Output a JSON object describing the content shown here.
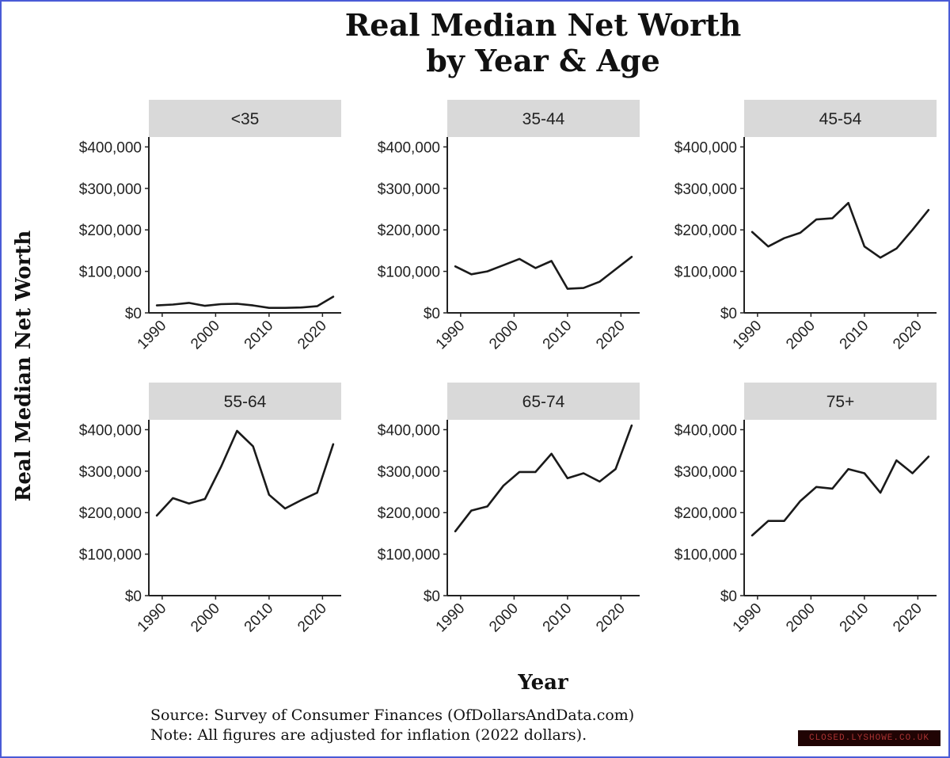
{
  "title": {
    "line1": "Real Median Net Worth",
    "line2": "by Year & Age"
  },
  "ylabel": "Real Median Net Worth",
  "xlabel": "Year",
  "source": {
    "line1": "Source:  Survey of Consumer Finances (OfDollarsAndData.com)",
    "line2": "Note: All figures are adjusted for inflation (2022 dollars)."
  },
  "watermark": "CLOSED.LYSHOWE.CO.UK",
  "colors": {
    "line": "#1a1a1a",
    "strip": "#d9d9d9",
    "border": "#4a5bd6"
  },
  "chart_data": [
    {
      "type": "line",
      "panel": "<35",
      "x": [
        1989,
        1992,
        1995,
        1998,
        2001,
        2004,
        2007,
        2010,
        2013,
        2016,
        2019,
        2022
      ],
      "values": [
        18000,
        20000,
        24000,
        17000,
        21000,
        22000,
        18000,
        12000,
        12000,
        13000,
        16000,
        39000
      ],
      "xticks": [
        "1990",
        "2000",
        "2010",
        "2020"
      ],
      "yticks": [
        "$400,000",
        "$300,000",
        "$200,000",
        "$100,000",
        "$0"
      ],
      "ylim": [
        0,
        420000
      ]
    },
    {
      "type": "line",
      "panel": "35-44",
      "x": [
        1989,
        1992,
        1995,
        1998,
        2001,
        2004,
        2007,
        2010,
        2013,
        2016,
        2019,
        2022
      ],
      "values": [
        112000,
        93000,
        100000,
        115000,
        130000,
        108000,
        125000,
        58000,
        60000,
        75000,
        105000,
        135000
      ],
      "xticks": [
        "1990",
        "2000",
        "2010",
        "2020"
      ],
      "yticks": [
        "$400,000",
        "$300,000",
        "$200,000",
        "$100,000",
        "$0"
      ],
      "ylim": [
        0,
        420000
      ]
    },
    {
      "type": "line",
      "panel": "45-54",
      "x": [
        1989,
        1992,
        1995,
        1998,
        2001,
        2004,
        2007,
        2010,
        2013,
        2016,
        2019,
        2022
      ],
      "values": [
        195000,
        160000,
        180000,
        193000,
        225000,
        228000,
        265000,
        160000,
        133000,
        155000,
        200000,
        248000
      ],
      "xticks": [
        "1990",
        "2000",
        "2010",
        "2020"
      ],
      "yticks": [
        "$400,000",
        "$300,000",
        "$200,000",
        "$100,000",
        "$0"
      ],
      "ylim": [
        0,
        420000
      ]
    },
    {
      "type": "line",
      "panel": "55-64",
      "x": [
        1989,
        1992,
        1995,
        1998,
        2001,
        2004,
        2007,
        2010,
        2013,
        2016,
        2019,
        2022
      ],
      "values": [
        193000,
        235000,
        222000,
        233000,
        310000,
        397000,
        360000,
        243000,
        210000,
        230000,
        248000,
        365000
      ],
      "xticks": [
        "1990",
        "2000",
        "2010",
        "2020"
      ],
      "yticks": [
        "$400,000",
        "$300,000",
        "$200,000",
        "$100,000",
        "$0"
      ],
      "ylim": [
        0,
        420000
      ]
    },
    {
      "type": "line",
      "panel": "65-74",
      "x": [
        1989,
        1992,
        1995,
        1998,
        2001,
        2004,
        2007,
        2010,
        2013,
        2016,
        2019,
        2022
      ],
      "values": [
        155000,
        205000,
        215000,
        265000,
        298000,
        298000,
        342000,
        283000,
        295000,
        275000,
        305000,
        410000
      ],
      "xticks": [
        "1990",
        "2000",
        "2010",
        "2020"
      ],
      "yticks": [
        "$400,000",
        "$300,000",
        "$200,000",
        "$100,000",
        "$0"
      ],
      "ylim": [
        0,
        420000
      ]
    },
    {
      "type": "line",
      "panel": "75+",
      "x": [
        1989,
        1992,
        1995,
        1998,
        2001,
        2004,
        2007,
        2010,
        2013,
        2016,
        2019,
        2022
      ],
      "values": [
        145000,
        180000,
        180000,
        228000,
        262000,
        258000,
        305000,
        295000,
        248000,
        326000,
        295000,
        335000
      ],
      "xticks": [
        "1990",
        "2000",
        "2010",
        "2020"
      ],
      "yticks": [
        "$400,000",
        "$300,000",
        "$200,000",
        "$100,000",
        "$0"
      ],
      "ylim": [
        0,
        420000
      ]
    }
  ]
}
